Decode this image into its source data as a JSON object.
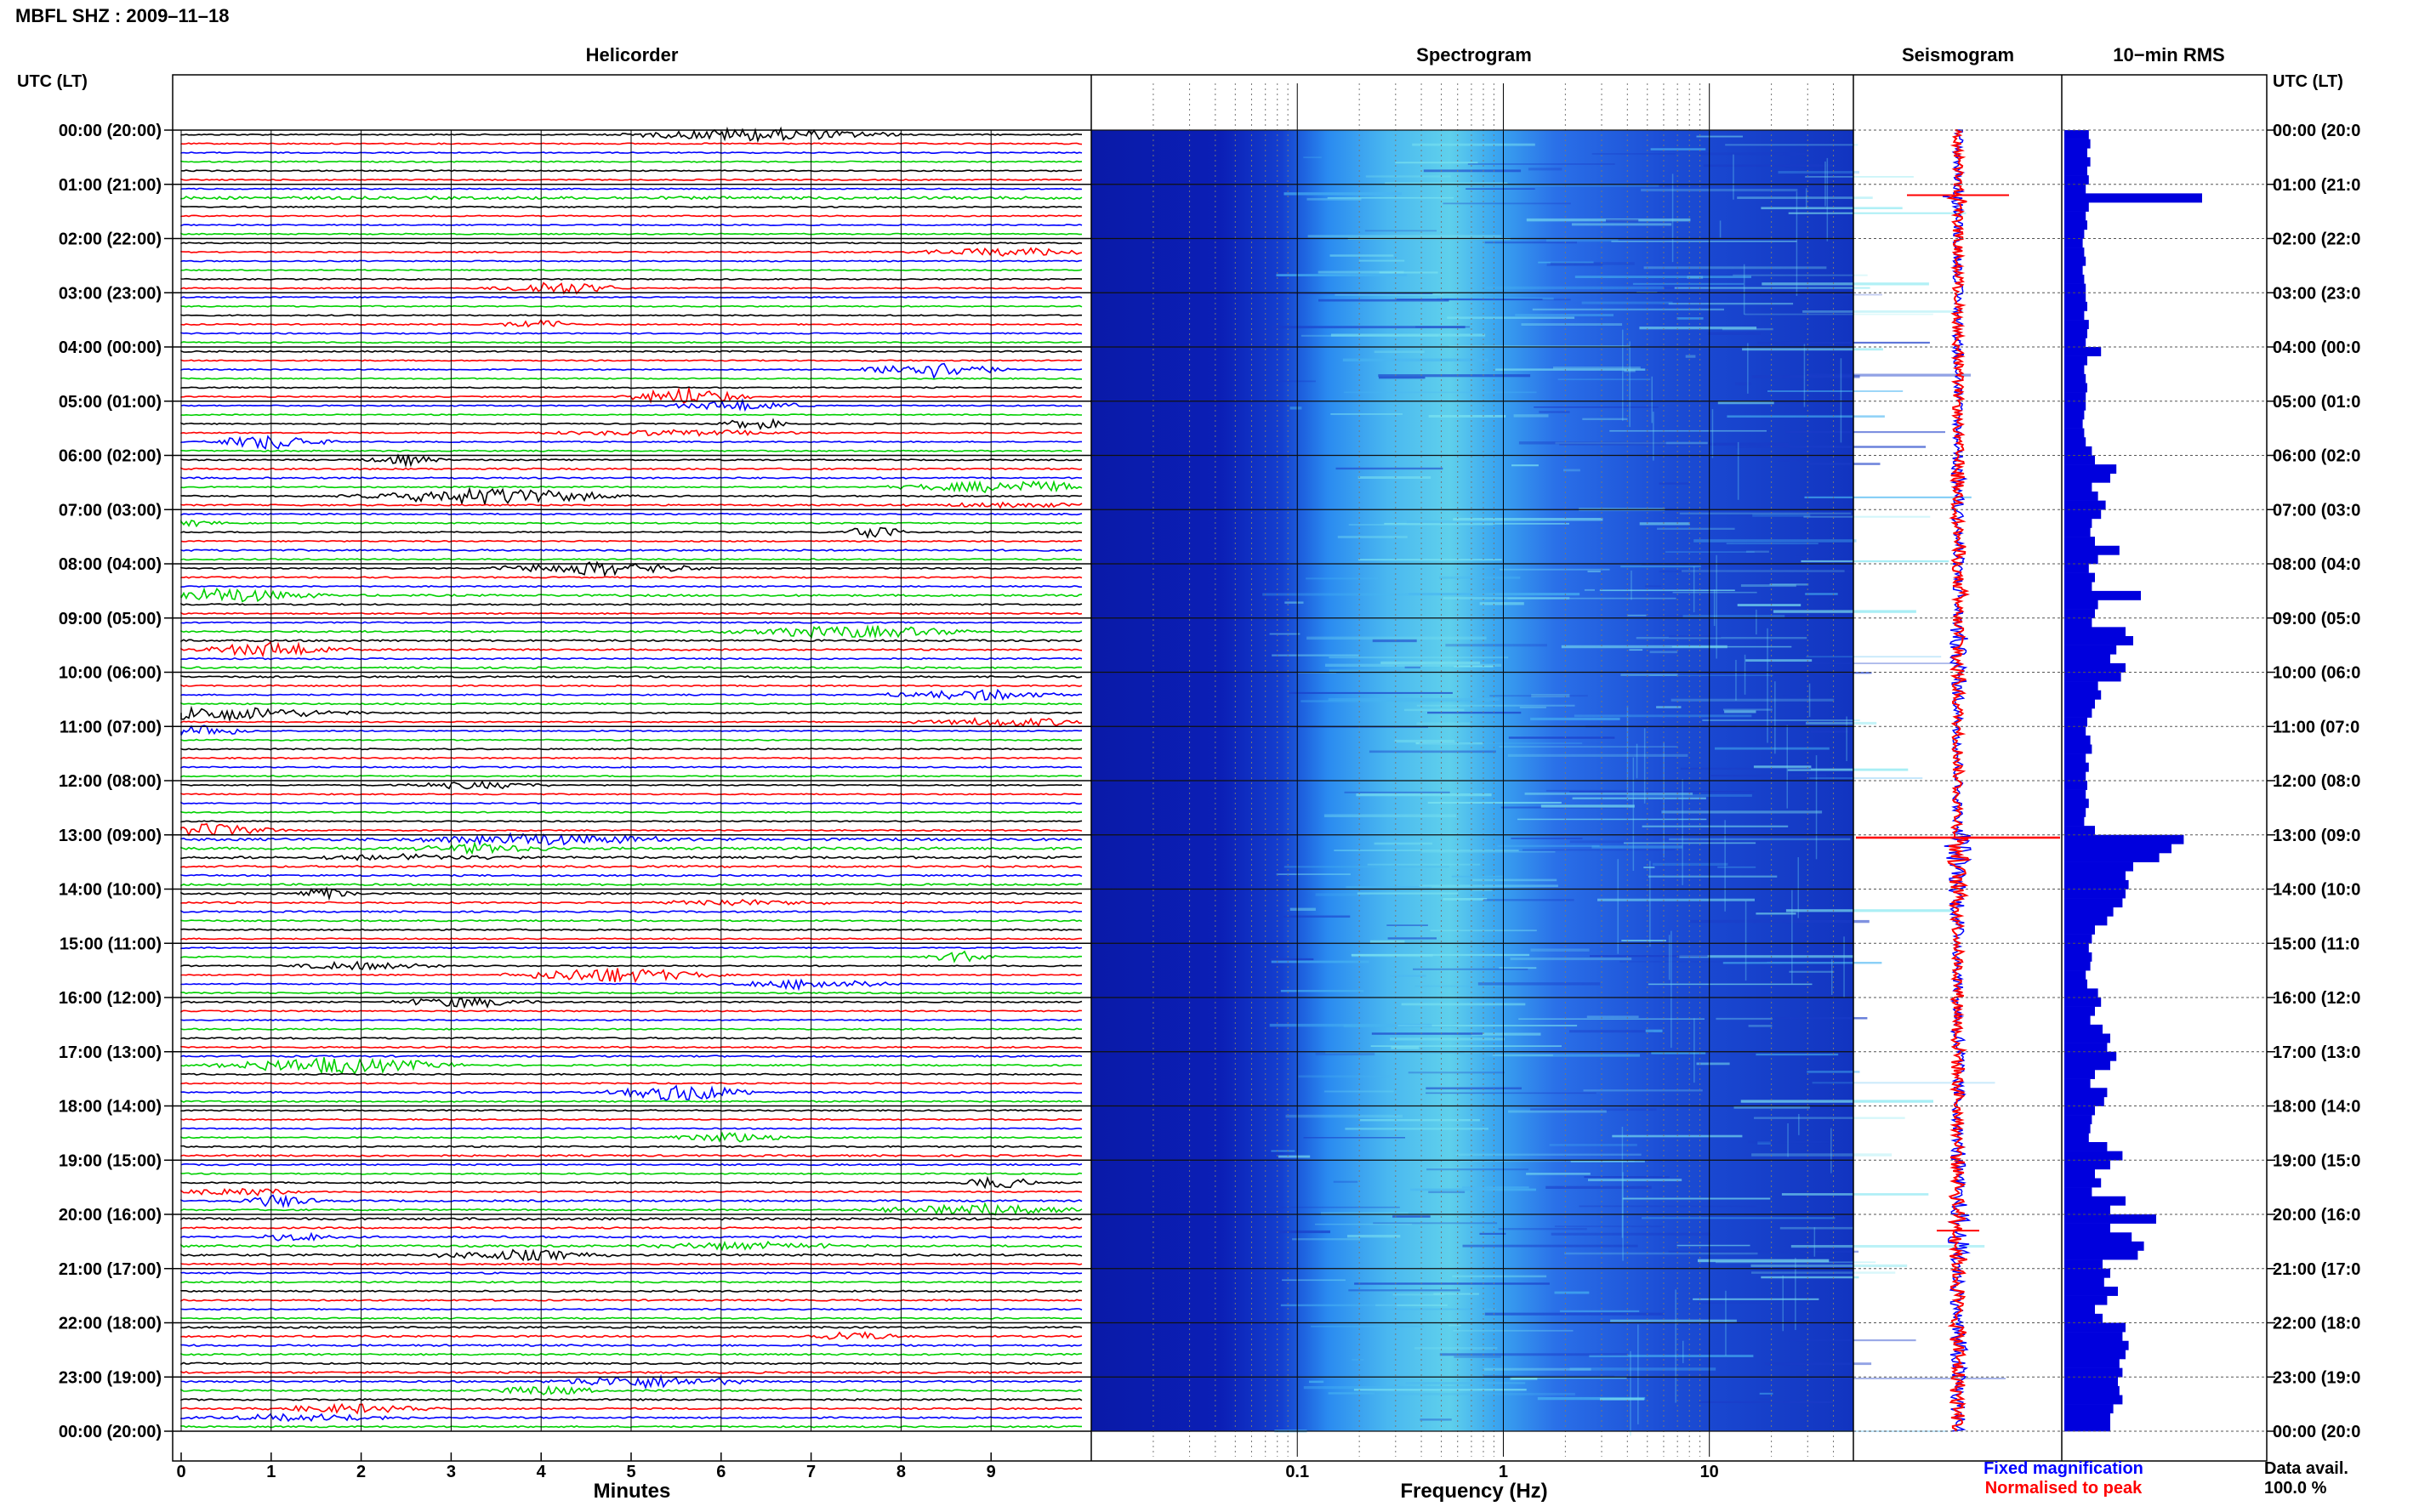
{
  "header": {
    "title": "MBFL SHZ : 2009–11–18"
  },
  "time_axis": {
    "title_left": "UTC (LT)",
    "title_right": "UTC (LT)",
    "labels_left": [
      "00:00 (20:00)",
      "01:00 (21:00)",
      "02:00 (22:00)",
      "03:00 (23:00)",
      "04:00 (00:00)",
      "05:00 (01:00)",
      "06:00 (02:00)",
      "07:00 (03:00)",
      "08:00 (04:00)",
      "09:00 (05:00)",
      "10:00 (06:00)",
      "11:00 (07:00)",
      "12:00 (08:00)",
      "13:00 (09:00)",
      "14:00 (10:00)",
      "15:00 (11:00)",
      "16:00 (12:00)",
      "17:00 (13:00)",
      "18:00 (14:00)",
      "19:00 (15:00)",
      "20:00 (16:00)",
      "21:00 (17:00)",
      "22:00 (18:00)",
      "23:00 (19:00)",
      "00:00 (20:00)"
    ],
    "labels_right": [
      "00:00 (20:0",
      "01:00 (21:0",
      "02:00 (22:0",
      "03:00 (23:0",
      "04:00 (00:0",
      "05:00 (01:0",
      "06:00 (02:0",
      "07:00 (03:0",
      "08:00 (04:0",
      "09:00 (05:0",
      "10:00 (06:0",
      "11:00 (07:0",
      "12:00 (08:0",
      "13:00 (09:0",
      "14:00 (10:0",
      "15:00 (11:0",
      "16:00 (12:0",
      "17:00 (13:0",
      "18:00 (14:0",
      "19:00 (15:0",
      "20:00 (16:0",
      "21:00 (17:0",
      "22:00 (18:0",
      "23:00 (19:0",
      "00:00 (20:0"
    ]
  },
  "chart_data": [
    {
      "type": "line",
      "title": "Helicorder",
      "xlabel": "Minutes",
      "xlim": [
        0,
        10
      ],
      "x_ticks": [
        "0",
        "1",
        "2",
        "3",
        "4",
        "5",
        "6",
        "7",
        "8",
        "9"
      ],
      "traces_per_hour": 6,
      "hours": 24,
      "trace_colors": [
        "#000000",
        "#ff0000",
        "#0000ff",
        "#00d000"
      ]
    },
    {
      "type": "heatmap",
      "title": "Spectrogram",
      "xlabel": "Frequency (Hz)",
      "xscale": "log",
      "xlim": [
        0.01,
        50
      ],
      "x_ticks": [
        "0.1",
        "1",
        "10"
      ],
      "colors": {
        "low": "#0a1aa8",
        "mid": "#2a72f0",
        "high": "#5fd4ec"
      }
    },
    {
      "type": "line",
      "title": "Seismogram",
      "legend": [
        "Fixed magnification",
        "Normalised to peak"
      ],
      "colors": {
        "fixed": "#0000ff",
        "normalised": "#ff0000"
      }
    },
    {
      "type": "bar",
      "title": "10−min RMS",
      "orientation": "horizontal",
      "color": "#0000dd",
      "values_per_hour": [
        [
          0.16,
          0.17,
          0.15,
          0.17,
          0.15,
          0.16
        ],
        [
          0.14,
          0.9,
          0.16,
          0.14,
          0.15,
          0.13
        ],
        [
          0.12,
          0.13,
          0.14,
          0.12,
          0.13,
          0.14
        ],
        [
          0.14,
          0.15,
          0.13,
          0.16,
          0.15,
          0.14
        ],
        [
          0.24,
          0.15,
          0.13,
          0.14,
          0.15,
          0.14
        ],
        [
          0.14,
          0.13,
          0.12,
          0.13,
          0.14,
          0.18
        ],
        [
          0.2,
          0.34,
          0.3,
          0.18,
          0.22,
          0.27
        ],
        [
          0.24,
          0.18,
          0.17,
          0.2,
          0.36,
          0.22
        ],
        [
          0.16,
          0.2,
          0.18,
          0.5,
          0.22,
          0.2
        ],
        [
          0.18,
          0.4,
          0.45,
          0.34,
          0.3,
          0.4
        ],
        [
          0.37,
          0.22,
          0.24,
          0.2,
          0.18,
          0.15
        ],
        [
          0.14,
          0.17,
          0.18,
          0.14,
          0.16,
          0.14
        ],
        [
          0.15,
          0.14,
          0.16,
          0.14,
          0.13,
          0.2
        ],
        [
          0.78,
          0.7,
          0.62,
          0.45,
          0.4,
          0.42
        ],
        [
          0.4,
          0.38,
          0.32,
          0.28,
          0.2,
          0.18
        ],
        [
          0.16,
          0.18,
          0.17,
          0.14,
          0.15,
          0.22
        ],
        [
          0.24,
          0.2,
          0.17,
          0.25,
          0.3,
          0.28
        ],
        [
          0.34,
          0.3,
          0.2,
          0.17,
          0.28,
          0.26
        ],
        [
          0.2,
          0.18,
          0.17,
          0.16,
          0.28,
          0.38
        ],
        [
          0.3,
          0.2,
          0.24,
          0.18,
          0.4,
          0.3
        ],
        [
          0.6,
          0.3,
          0.44,
          0.52,
          0.48,
          0.25
        ],
        [
          0.3,
          0.26,
          0.35,
          0.28,
          0.2,
          0.25
        ],
        [
          0.4,
          0.38,
          0.42,
          0.4,
          0.36,
          0.38
        ],
        [
          0.35,
          0.36,
          0.38,
          0.32,
          0.3,
          0.3
        ]
      ]
    }
  ],
  "footer": {
    "legend_fixed": "Fixed magnification",
    "legend_normalised": "Normalised to peak",
    "data_avail_label": "Data avail.",
    "data_avail_value": "100.0 %"
  }
}
